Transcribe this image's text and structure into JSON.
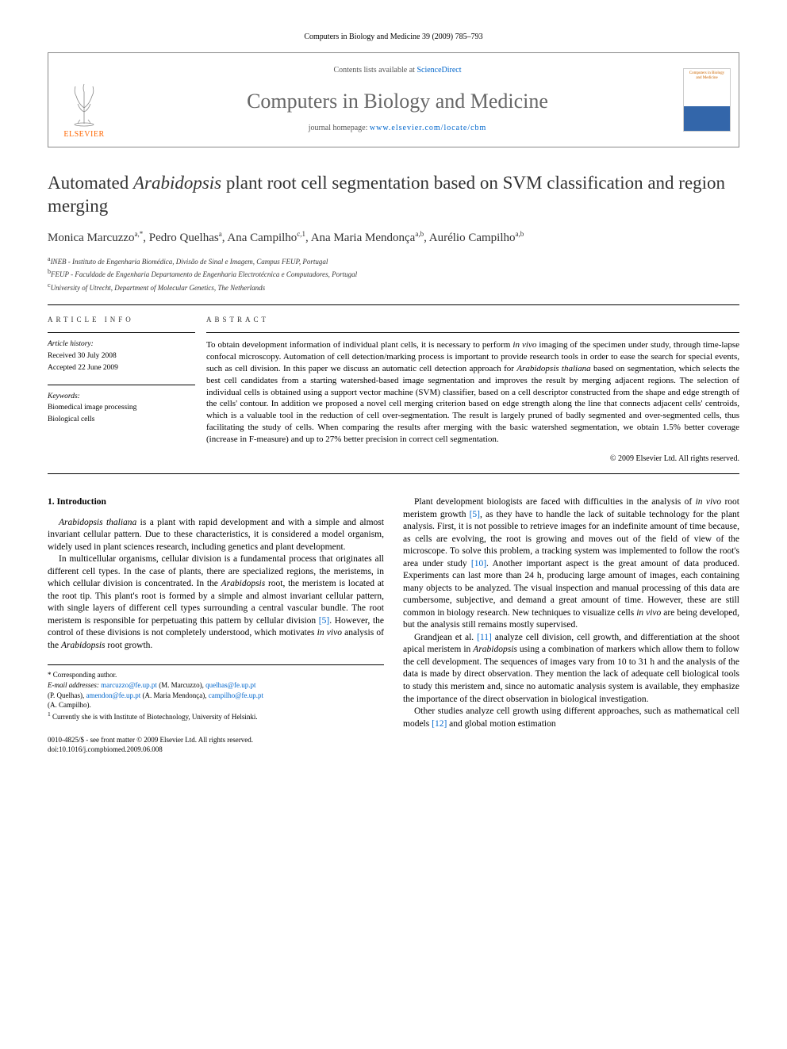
{
  "top_citation": "Computers in Biology and Medicine 39 (2009) 785–793",
  "header": {
    "publisher": "ELSEVIER",
    "contents_prefix": "Contents lists available at ",
    "contents_link": "ScienceDirect",
    "journal_name": "Computers in Biology and Medicine",
    "homepage_prefix": "journal homepage: ",
    "homepage_url": "www.elsevier.com/locate/cbm",
    "thumb_label": "Computers in Biology and Medicine"
  },
  "article": {
    "title_pre": "Automated ",
    "title_italic": "Arabidopsis",
    "title_post": " plant root cell segmentation based on SVM classification and region merging",
    "authors_html": "Monica Marcuzzo<sup>a,*</sup>, Pedro Quelhas<sup>a</sup>, Ana Campilho<sup>c,1</sup>, Ana Maria Mendonça<sup>a,b</sup>, Aurélio Campilho<sup>a,b</sup>",
    "affiliations": [
      "<sup>a</sup>INEB - Instituto de Engenharia Biomédica, Divisão de Sinal e Imagem, Campus FEUP, Portugal",
      "<sup>b</sup>FEUP - Faculdade de Engenharia Departamento de Engenharia Electrotécnica e Computadores, Portugal",
      "<sup>c</sup>University of Utrecht, Department of Molecular Genetics, The Netherlands"
    ]
  },
  "info": {
    "heading": "ARTICLE INFO",
    "history_label": "Article history:",
    "received": "Received 30 July 2008",
    "accepted": "Accepted 22 June 2009",
    "keywords_label": "Keywords:",
    "keywords": [
      "Biomedical image processing",
      "Biological cells"
    ]
  },
  "abstract": {
    "heading": "ABSTRACT",
    "text": "To obtain development information of individual plant cells, it is necessary to perform <span class=\"italic\">in vivo</span> imaging of the specimen under study, through time-lapse confocal microscopy. Automation of cell detection/marking process is important to provide research tools in order to ease the search for special events, such as cell division. In this paper we discuss an automatic cell detection approach for <span class=\"italic\">Arabidopsis thaliana</span> based on segmentation, which selects the best cell candidates from a starting watershed-based image segmentation and improves the result by merging adjacent regions. The selection of individual cells is obtained using a support vector machine (SVM) classifier, based on a cell descriptor constructed from the shape and edge strength of the cells' contour. In addition we proposed a novel cell merging criterion based on edge strength along the line that connects adjacent cells' centroids, which is a valuable tool in the reduction of cell over-segmentation. The result is largely pruned of badly segmented and over-segmented cells, thus facilitating the study of cells. When comparing the results after merging with the basic watershed segmentation, we obtain 1.5% better coverage (increase in F-measure) and up to 27% better precision in correct cell segmentation.",
    "copyright": "© 2009 Elsevier Ltd. All rights reserved."
  },
  "body": {
    "section1_heading": "1. Introduction",
    "left_paragraphs": [
      "<span class=\"italic\">Arabidopsis thaliana</span> is a plant with rapid development and with a simple and almost invariant cellular pattern. Due to these characteristics, it is considered a model organism, widely used in plant sciences research, including genetics and plant development.",
      "In multicellular organisms, cellular division is a fundamental process that originates all different cell types. In the case of plants, there are specialized regions, the meristems, in which cellular division is concentrated. In the <span class=\"italic\">Arabidopsis</span> root, the meristem is located at the root tip. This plant's root is formed by a simple and almost invariant cellular pattern, with single layers of different cell types surrounding a central vascular bundle. The root meristem is responsible for perpetuating this pattern by cellular division <span class=\"ref-link\">[5]</span>. However, the control of these divisions is not completely understood, which motivates <span class=\"italic\">in vivo</span> analysis of the <span class=\"italic\">Arabidopsis</span> root growth."
    ],
    "right_paragraphs": [
      "Plant development biologists are faced with difficulties in the analysis of <span class=\"italic\">in vivo</span> root meristem growth <span class=\"ref-link\">[5]</span>, as they have to handle the lack of suitable technology for the plant analysis. First, it is not possible to retrieve images for an indefinite amount of time because, as cells are evolving, the root is growing and moves out of the field of view of the microscope. To solve this problem, a tracking system was implemented to follow the root's area under study <span class=\"ref-link\">[10]</span>. Another important aspect is the great amount of data produced. Experiments can last more than 24 h, producing large amount of images, each containing many objects to be analyzed. The visual inspection and manual processing of this data are cumbersome, subjective, and demand a great amount of time. However, these are still common in biology research. New techniques to visualize cells <span class=\"italic\">in vivo</span> are being developed, but the analysis still remains mostly supervised.",
      "Grandjean et al. <span class=\"ref-link\">[11]</span> analyze cell division, cell growth, and differentiation at the shoot apical meristem in <span class=\"italic\">Arabidopsis</span> using a combination of markers which allow them to follow the cell development. The sequences of images vary from 10 to 31 h and the analysis of the data is made by direct observation. They mention the lack of adequate cell biological tools to study this meristem and, since no automatic analysis system is available, they emphasize the importance of the direct observation in biological investigation.",
      "Other studies analyze cell growth using different approaches, such as mathematical cell models <span class=\"ref-link\">[12]</span> and global motion estimation"
    ]
  },
  "footnotes": {
    "corresponding": "* Corresponding author.",
    "emails_label": "E-mail addresses:",
    "emails": [
      {
        "addr": "marcuzzo@fe.up.pt",
        "who": "(M. Marcuzzo)"
      },
      {
        "addr": "quelhas@fe.up.pt",
        "who": "(P. Quelhas)"
      },
      {
        "addr": "amendon@fe.up.pt",
        "who": "(A. Maria Mendonça)"
      },
      {
        "addr": "campilho@fe.up.pt",
        "who": "(A. Campilho)"
      }
    ],
    "note1": "<sup>1</sup> Currently she is with Institute of Biotechnology, University of Helsinki."
  },
  "footer": {
    "line1": "0010-4825/$ - see front matter © 2009 Elsevier Ltd. All rights reserved.",
    "line2": "doi:10.1016/j.compbiomed.2009.06.008"
  },
  "colors": {
    "link": "#0066cc",
    "logo": "#ff6600",
    "text": "#000000",
    "gray": "#666666"
  }
}
